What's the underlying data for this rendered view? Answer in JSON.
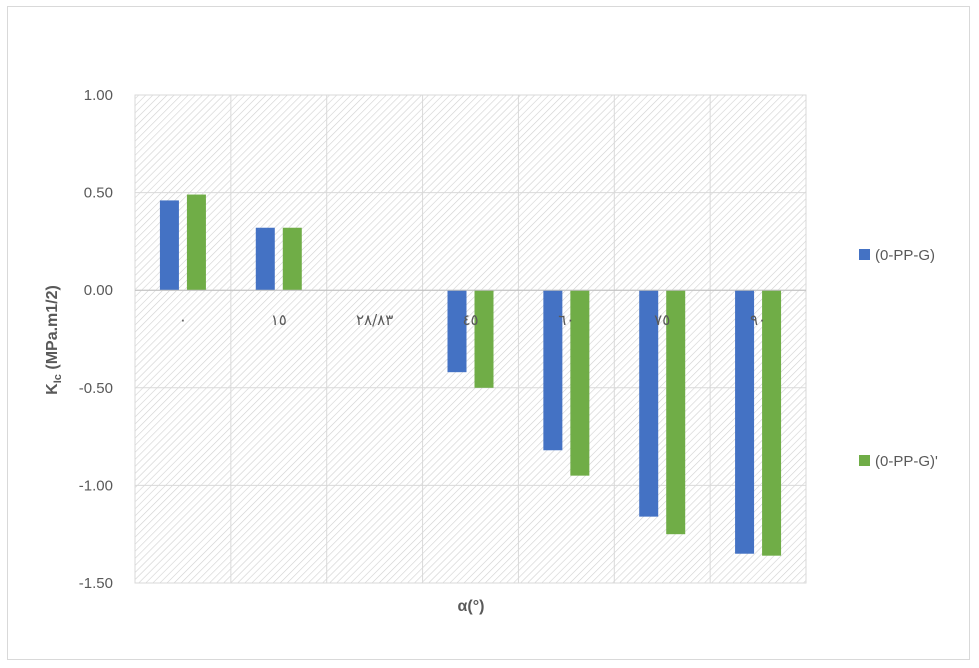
{
  "chart_data": {
    "type": "bar",
    "categories": [
      "٠",
      "١٥",
      "٢٨/٨٣",
      "٤٥",
      "٦٠",
      "٧٥",
      "٩٠"
    ],
    "series": [
      {
        "name": "(0-PP-G)",
        "color": "#4472c4",
        "values": [
          0.46,
          0.32,
          0.0,
          -0.42,
          -0.82,
          -1.16,
          -1.35
        ]
      },
      {
        "name": "(0-PP-G)'",
        "color": "#70ad47",
        "values": [
          0.49,
          0.32,
          0.0,
          -0.5,
          -0.95,
          -1.25,
          -1.36
        ]
      }
    ],
    "ylim": [
      -1.5,
      1.0
    ],
    "yticks": [
      1.0,
      0.5,
      0.0,
      -0.5,
      -1.0,
      -1.5
    ],
    "ytick_labels": [
      "1.00",
      "0.50",
      "0.00",
      "-0.50",
      "-1.00",
      "-1.50"
    ],
    "xlabel": "α(°)",
    "ylabel_main": "K",
    "ylabel_sub": "Ic",
    "ylabel_rest": " (MPa.m1/2)",
    "legend_position": "right",
    "grid": true,
    "plot_background": "hatched"
  }
}
